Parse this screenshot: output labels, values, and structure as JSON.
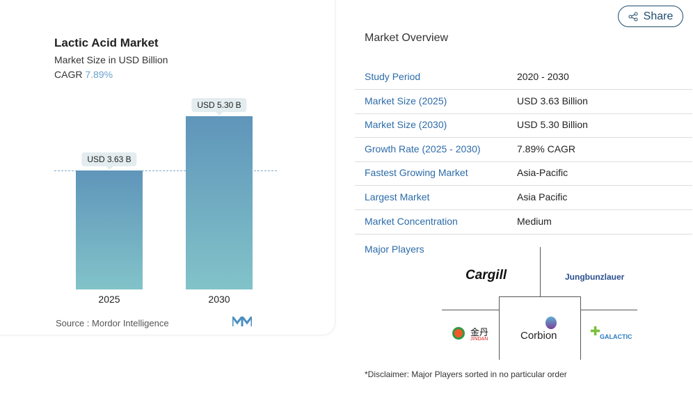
{
  "header": {
    "share_label": "Share",
    "share_icon": "share-icon"
  },
  "chart_data": {
    "type": "bar",
    "title": "Lactic Acid Market",
    "subtitle": "Market Size in USD Billion",
    "cagr_label": "CAGR",
    "cagr_value": "7.89%",
    "categories": [
      "2025",
      "2030"
    ],
    "values": [
      3.63,
      5.3
    ],
    "data_labels": [
      "USD 3.63 B",
      "USD 5.30 B"
    ],
    "ylim": [
      0,
      5.3
    ],
    "colors": {
      "bar_top": "#5f95ba",
      "bar_bottom": "#82c3c9"
    },
    "source": "Source :  Mordor Intelligence"
  },
  "overview": {
    "title": "Market Overview",
    "rows": [
      {
        "label": "Study Period",
        "value": "2020 - 2030"
      },
      {
        "label": "Market Size (2025)",
        "value": "USD 3.63 Billion"
      },
      {
        "label": "Market Size (2030)",
        "value": "USD 5.30 Billion"
      },
      {
        "label": "Growth Rate (2025 - 2030)",
        "value": "7.89% CAGR"
      },
      {
        "label": "Fastest Growing Market",
        "value": "Asia-Pacific"
      },
      {
        "label": "Largest Market",
        "value": "Asia Pacific"
      },
      {
        "label": "Market Concentration",
        "value": "Medium"
      }
    ],
    "major_players_label": "Major Players",
    "players": [
      "Cargill",
      "Jungbunzlauer",
      "Corbion",
      "JINDAN",
      "GALACTIC"
    ],
    "jindan_cn": "金丹",
    "disclaimer": "*Disclaimer: Major Players sorted in no particular order"
  }
}
